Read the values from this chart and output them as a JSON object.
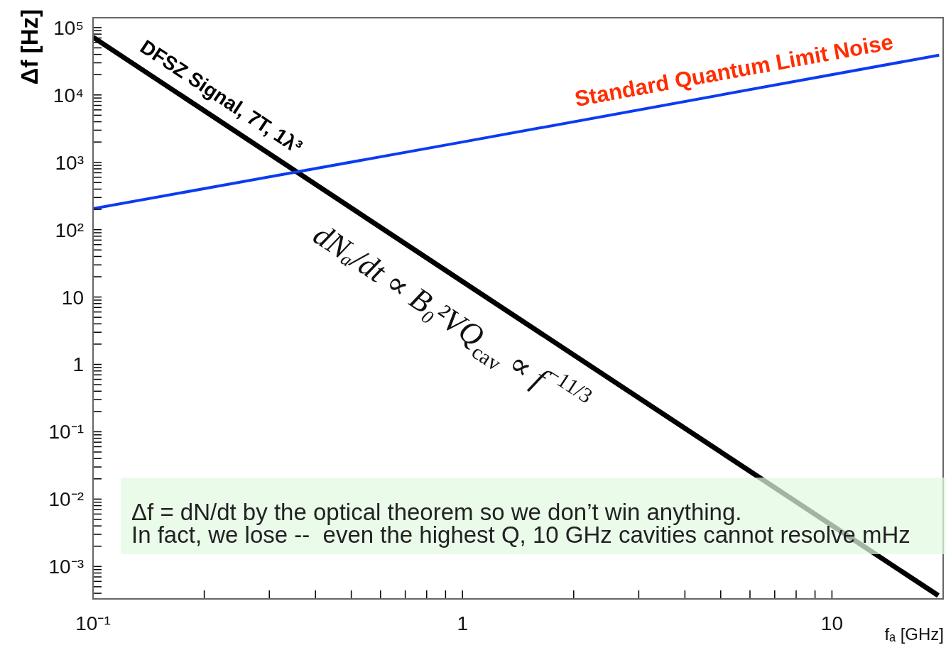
{
  "chart_data": {
    "type": "line",
    "log": "xy",
    "xlabel": "fₐ [GHz]",
    "ylabel": "Δf [Hz]",
    "xlim": [
      0.1,
      20
    ],
    "ylim": [
      0.00033,
      140000
    ],
    "xticks": [
      {
        "value": 0.1,
        "label": "10⁻¹"
      },
      {
        "value": 0.2,
        "label": null
      },
      {
        "value": 0.3,
        "label": null
      },
      {
        "value": 0.4,
        "label": null
      },
      {
        "value": 0.5,
        "label": null
      },
      {
        "value": 0.6,
        "label": null
      },
      {
        "value": 0.7,
        "label": null
      },
      {
        "value": 0.8,
        "label": null
      },
      {
        "value": 0.9,
        "label": null
      },
      1,
      {
        "value": 2,
        "label": null
      },
      {
        "value": 3,
        "label": null
      },
      {
        "value": 4,
        "label": null
      },
      {
        "value": 5,
        "label": null
      },
      {
        "value": 6,
        "label": null
      },
      {
        "value": 7,
        "label": null
      },
      {
        "value": 8,
        "label": null
      },
      {
        "value": 9,
        "label": null
      },
      10
    ],
    "yticks": [
      {
        "value": 0.0004,
        "label": null
      },
      {
        "value": 0.0005,
        "label": null
      },
      {
        "value": 0.0006,
        "label": null
      },
      {
        "value": 0.0007,
        "label": null
      },
      {
        "value": 0.0008,
        "label": null
      },
      {
        "value": 0.0009,
        "label": null
      },
      {
        "value": 0.001,
        "label": "10⁻³"
      },
      {
        "value": 0.002,
        "label": null
      },
      {
        "value": 0.003,
        "label": null
      },
      {
        "value": 0.004,
        "label": null
      },
      {
        "value": 0.005,
        "label": null
      },
      {
        "value": 0.006,
        "label": null
      },
      {
        "value": 0.007,
        "label": null
      },
      {
        "value": 0.008,
        "label": null
      },
      {
        "value": 0.009,
        "label": null
      },
      {
        "value": 0.01,
        "label": "10⁻²"
      },
      {
        "value": 0.02,
        "label": null
      },
      {
        "value": 0.03,
        "label": null
      },
      {
        "value": 0.04,
        "label": null
      },
      {
        "value": 0.05,
        "label": null
      },
      {
        "value": 0.06,
        "label": null
      },
      {
        "value": 0.07,
        "label": null
      },
      {
        "value": 0.08,
        "label": null
      },
      {
        "value": 0.09,
        "label": null
      },
      {
        "value": 0.1,
        "label": "10⁻¹"
      },
      {
        "value": 0.2,
        "label": null
      },
      {
        "value": 0.3,
        "label": null
      },
      {
        "value": 0.4,
        "label": null
      },
      {
        "value": 0.5,
        "label": null
      },
      {
        "value": 0.6,
        "label": null
      },
      {
        "value": 0.7,
        "label": null
      },
      {
        "value": 0.8,
        "label": null
      },
      {
        "value": 0.9,
        "label": null
      },
      1,
      {
        "value": 2,
        "label": null
      },
      {
        "value": 3,
        "label": null
      },
      {
        "value": 4,
        "label": null
      },
      {
        "value": 5,
        "label": null
      },
      {
        "value": 6,
        "label": null
      },
      {
        "value": 7,
        "label": null
      },
      {
        "value": 8,
        "label": null
      },
      {
        "value": 9,
        "label": null
      },
      10,
      {
        "value": 20,
        "label": null
      },
      {
        "value": 30,
        "label": null
      },
      {
        "value": 40,
        "label": null
      },
      {
        "value": 50,
        "label": null
      },
      {
        "value": 60,
        "label": null
      },
      {
        "value": 70,
        "label": null
      },
      {
        "value": 80,
        "label": null
      },
      {
        "value": 90,
        "label": null
      },
      {
        "value": 100,
        "label": "10²"
      },
      {
        "value": 200,
        "label": null
      },
      {
        "value": 300,
        "label": null
      },
      {
        "value": 400,
        "label": null
      },
      {
        "value": 500,
        "label": null
      },
      {
        "value": 600,
        "label": null
      },
      {
        "value": 700,
        "label": null
      },
      {
        "value": 800,
        "label": null
      },
      {
        "value": 900,
        "label": null
      },
      {
        "value": 1000,
        "label": "10³"
      },
      {
        "value": 2000,
        "label": null
      },
      {
        "value": 3000,
        "label": null
      },
      {
        "value": 4000,
        "label": null
      },
      {
        "value": 5000,
        "label": null
      },
      {
        "value": 6000,
        "label": null
      },
      {
        "value": 7000,
        "label": null
      },
      {
        "value": 8000,
        "label": null
      },
      {
        "value": 9000,
        "label": null
      },
      {
        "value": 10000,
        "label": "10⁴"
      },
      {
        "value": 20000,
        "label": null
      },
      {
        "value": 30000,
        "label": null
      },
      {
        "value": 40000,
        "label": null
      },
      {
        "value": 50000,
        "label": null
      },
      {
        "value": 60000,
        "label": null
      },
      {
        "value": 70000,
        "label": null
      },
      {
        "value": 80000,
        "label": null
      },
      {
        "value": 90000,
        "label": null
      },
      {
        "value": 100000,
        "label": "10⁵"
      }
    ],
    "series": [
      {
        "name": "DFSZ Signal, 7T, 1λ³",
        "color": "#000000",
        "x": [
          0.1,
          1,
          19.4
        ],
        "values": [
          72000,
          17,
          0.00037
        ]
      },
      {
        "name": "Standard Quantum Limit Noise",
        "color": "#0b3bf2",
        "x": [
          0.1,
          1,
          19.5
        ],
        "values": [
          205,
          2000,
          39000
        ]
      }
    ],
    "annotations": [
      "dNₐ/dt ∝ B₀²VQ$_{cav}$ ∝ f$^{−11/3}$",
      "Δf = dN/dt by the optical theorem so we don’t win anything.",
      "In fact, we lose --  even the highest Q, 10 GHz cavities cannot resolve mHz"
    ]
  }
}
